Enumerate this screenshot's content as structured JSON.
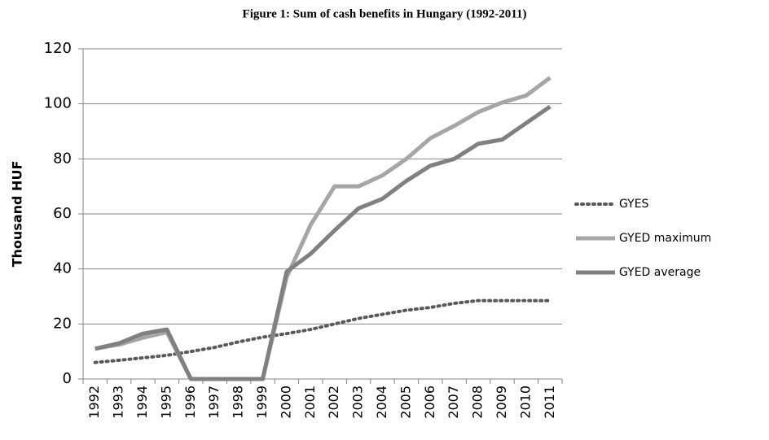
{
  "chart_data": {
    "type": "line",
    "title": "Figure 1: Sum of cash benefits in Hungary (1992-2011)",
    "y_label": "Thousand HUF",
    "categories": [
      "1992",
      "1993",
      "1994",
      "1995",
      "1996",
      "1997",
      "1998",
      "1999",
      "2000",
      "2001",
      "2002",
      "2003",
      "2004",
      "2005",
      "2006",
      "2007",
      "2008",
      "2009",
      "2010",
      "2011"
    ],
    "series": [
      {
        "name": "GYES",
        "color": "#595959",
        "line_style": "dotted",
        "values": [
          6,
          6.8,
          7.7,
          8.6,
          10,
          11.5,
          13.5,
          15.2,
          16.5,
          18,
          20,
          22,
          23.5,
          25,
          26,
          27.5,
          28.5,
          28.5,
          28.5,
          28.5
        ]
      },
      {
        "name": "GYED maximum",
        "color": "#a6a6a6",
        "line_style": "solid",
        "values": [
          11,
          12.5,
          15,
          17,
          0,
          0,
          0,
          0,
          37,
          56,
          70,
          70,
          74,
          80,
          87.5,
          92,
          97,
          100.5,
          103,
          109.5
        ]
      },
      {
        "name": "GYED average",
        "color": "#808080",
        "line_style": "solid",
        "values": [
          11,
          13,
          16.5,
          18,
          0,
          0,
          0,
          0,
          39,
          45.5,
          54,
          62,
          65.5,
          72,
          77.5,
          80,
          85.5,
          87,
          93,
          99
        ]
      }
    ],
    "ylim": [
      0,
      120
    ],
    "yticks": [
      0,
      20,
      40,
      60,
      80,
      100,
      120
    ],
    "grid": true,
    "legend": "right"
  }
}
